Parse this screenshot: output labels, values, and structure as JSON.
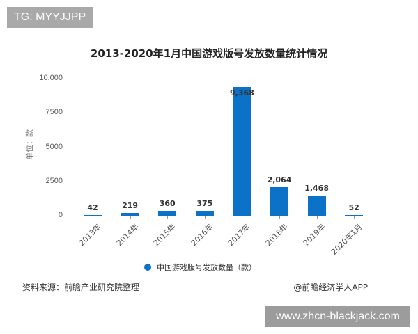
{
  "overlay": {
    "top_left_badge": "TG: MYYJJPP",
    "bottom_right_badge": "www.zhcn-blackjack.com"
  },
  "chart": {
    "title": "2013-2020年1月中国游戏版号发放数量统计情况",
    "ylabel": "单位：款",
    "yticks": [
      "10,000",
      "7500",
      "5000",
      "2500",
      "0"
    ],
    "legend": "中国游戏版号发放数量（款）",
    "source": "资料来源：前瞻产业研究院整理",
    "credit": "@前瞻经济学人APP",
    "bar_color": "#0b72c8"
  },
  "chart_data": {
    "type": "bar",
    "title": "2013-2020年1月中国游戏版号发放数量统计情况",
    "xlabel": "",
    "ylabel": "单位：款",
    "ylim": [
      0,
      10000
    ],
    "yticks": [
      0,
      2500,
      5000,
      7500,
      10000
    ],
    "grid": true,
    "legend_position": "bottom",
    "categories": [
      "2013年",
      "2014年",
      "2015年",
      "2016年",
      "2017年",
      "2018年",
      "2019年",
      "2020年1月"
    ],
    "series": [
      {
        "name": "中国游戏版号发放数量（款）",
        "values": [
          42,
          219,
          360,
          375,
          9368,
          2064,
          1468,
          52
        ],
        "labels": [
          "42",
          "219",
          "360",
          "375",
          "9,368",
          "2,064",
          "1,468",
          "52"
        ]
      }
    ]
  }
}
